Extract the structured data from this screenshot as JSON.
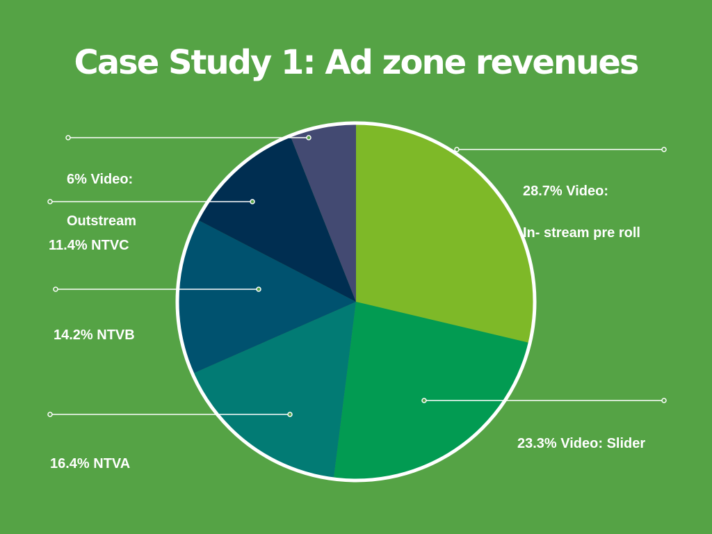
{
  "chart_data": {
    "type": "pie",
    "title": "Case Study 1: Ad zone revenues",
    "slices": [
      {
        "label": "Video: In- stream pre roll",
        "value": 28.7,
        "color": "#7eb928",
        "text_lines": [
          "28.7% Video:",
          "In- stream pre roll"
        ]
      },
      {
        "label": "Video: Slider",
        "value": 23.3,
        "color": "#029b52",
        "text_lines": [
          "23.3% Video: Slider"
        ]
      },
      {
        "label": "NTVA",
        "value": 16.4,
        "color": "#027b74",
        "text_lines": [
          "16.4% NTVA"
        ]
      },
      {
        "label": "NTVB",
        "value": 14.2,
        "color": "#00526f",
        "text_lines": [
          "14.2% NTVB"
        ]
      },
      {
        "label": "NTVC",
        "value": 11.4,
        "color": "#002e51",
        "text_lines": [
          "11.4% NTVC"
        ]
      },
      {
        "label": "Video: Outstream",
        "value": 6.0,
        "color": "#434a72",
        "text_lines": [
          "6% Video:",
          "Outstream"
        ]
      }
    ],
    "legend": "none",
    "start_angle": "12 o'clock",
    "direction": "clockwise"
  },
  "colors": {
    "background": "#55a345",
    "text": "#ffffff",
    "pie_border": "#ffffff"
  }
}
